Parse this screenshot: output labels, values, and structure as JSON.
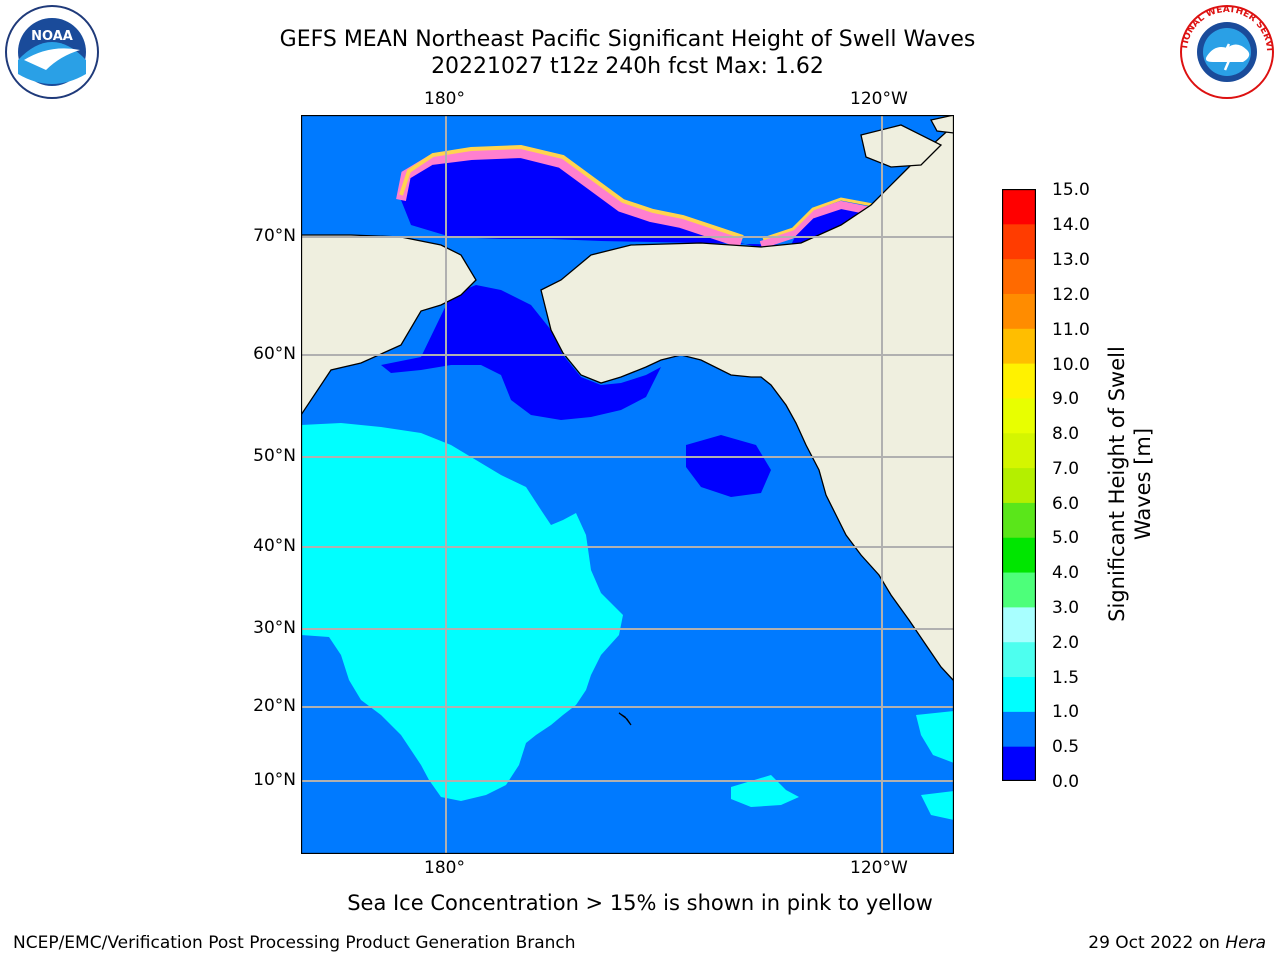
{
  "header": {
    "title_line1": "GEFS MEAN Northeast Pacific Significant Height of Swell Waves",
    "title_line2": "20221027 t12z 240h fcst   Max: 1.62"
  },
  "logos": {
    "left": {
      "icon": "noaa-logo",
      "text": "NOAA"
    },
    "right": {
      "icon": "nws-logo",
      "text": "NATIONAL WEATHER SERVICE"
    }
  },
  "map": {
    "lon_labels_top": [
      "180°",
      "120°W"
    ],
    "lon_labels_bottom": [
      "180°",
      "120°W"
    ],
    "lat_labels": [
      "70°N",
      "60°N",
      "50°N",
      "40°N",
      "30°N",
      "20°N",
      "10°N"
    ],
    "colors": {
      "land": "#efefdf",
      "ocean_low": "#0000ff",
      "ocean_mid": "#007aff",
      "ocean_high": "#00ffff",
      "grid": "#b0b0b0",
      "ice_pink": "#ff7fcf",
      "ice_yellow": "#ffd44f"
    }
  },
  "colorbar": {
    "title": "Significant Height of Swell Waves [m]",
    "title_line1": "Significant Height of Swell",
    "title_line2": "Waves [m]",
    "tick_labels": [
      "15.0",
      "14.0",
      "13.0",
      "12.0",
      "11.0",
      "10.0",
      "9.0",
      "8.0",
      "7.0",
      "6.0",
      "5.0",
      "4.0",
      "3.0",
      "2.0",
      "1.5",
      "1.0",
      "0.5",
      "0.0"
    ],
    "bins": [
      {
        "from": 0.0,
        "to": 0.5,
        "color": "#0000ff"
      },
      {
        "from": 0.5,
        "to": 1.0,
        "color": "#007aff"
      },
      {
        "from": 1.0,
        "to": 1.5,
        "color": "#00ffff"
      },
      {
        "from": 1.5,
        "to": 2.0,
        "color": "#4dffef"
      },
      {
        "from": 2.0,
        "to": 3.0,
        "color": "#a8ffff"
      },
      {
        "from": 3.0,
        "to": 4.0,
        "color": "#4dff7a"
      },
      {
        "from": 4.0,
        "to": 5.0,
        "color": "#00e600"
      },
      {
        "from": 5.0,
        "to": 6.0,
        "color": "#5ae61a"
      },
      {
        "from": 6.0,
        "to": 7.0,
        "color": "#b4ef00"
      },
      {
        "from": 7.0,
        "to": 8.0,
        "color": "#d4f600"
      },
      {
        "from": 8.0,
        "to": 9.0,
        "color": "#e8ff00"
      },
      {
        "from": 9.0,
        "to": 10.0,
        "color": "#fff200"
      },
      {
        "from": 10.0,
        "to": 11.0,
        "color": "#ffbe00"
      },
      {
        "from": 11.0,
        "to": 12.0,
        "color": "#ff8c00"
      },
      {
        "from": 12.0,
        "to": 13.0,
        "color": "#ff6a00"
      },
      {
        "from": 13.0,
        "to": 14.0,
        "color": "#ff3c00"
      },
      {
        "from": 14.0,
        "to": 15.0,
        "color": "#ff0000"
      }
    ]
  },
  "caption": "Sea Ice Concentration > 15% is shown in pink to yellow",
  "footer": {
    "left": "NCEP/EMC/Verification Post Processing Product Generation Branch",
    "right_prefix": "29 Oct 2022 on ",
    "right_machine": "Hera"
  }
}
